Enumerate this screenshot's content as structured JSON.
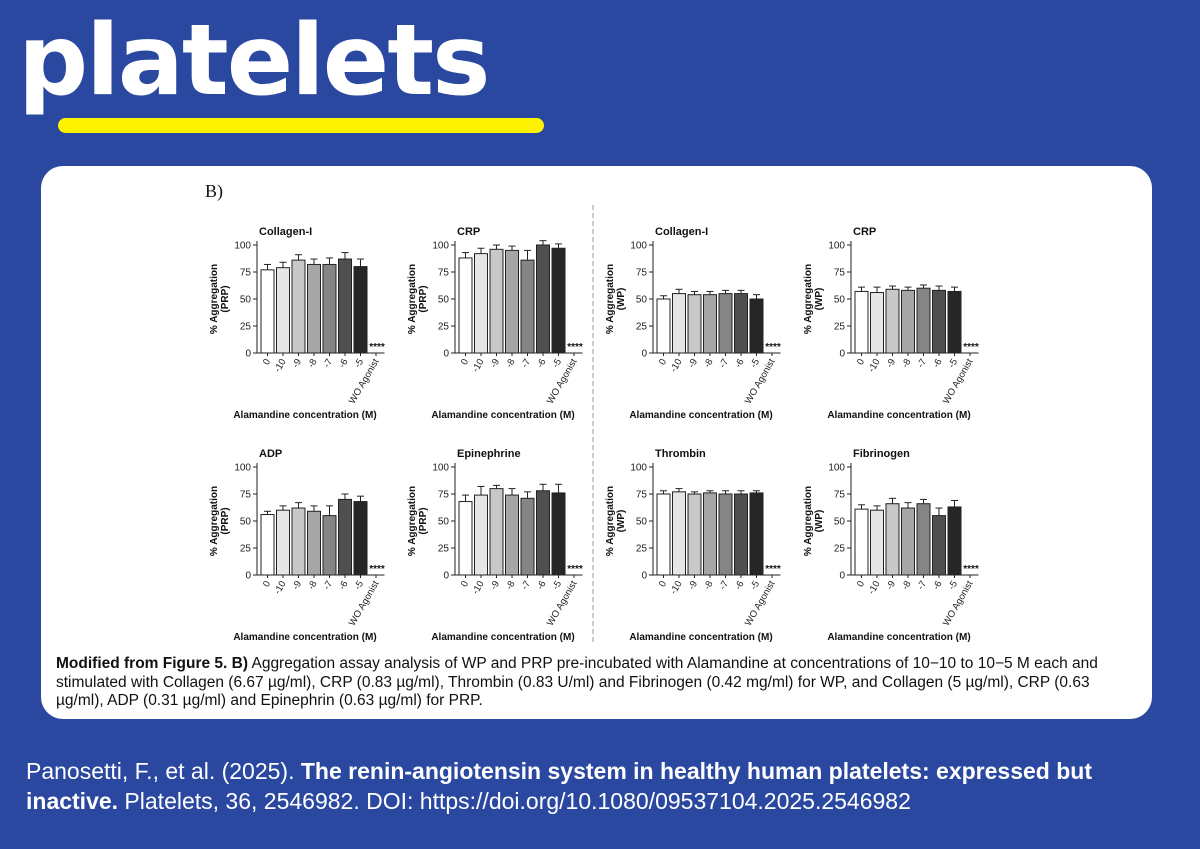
{
  "brand": {
    "logo_text": "platelets",
    "underline_color": "#fff200",
    "background_color": "#2a48a0"
  },
  "figure": {
    "panel_label": "B)"
  },
  "chart_data": [
    {
      "type": "bar",
      "title": "Collagen-I",
      "ylabel": "% Aggregation (PRP)",
      "xlabel": "Alamandine concentration (M)",
      "categories": [
        "0",
        "-10",
        "-9",
        "-8",
        "-7",
        "-6",
        "-5",
        "WO Agonist"
      ],
      "values": [
        77,
        79,
        86,
        82,
        82,
        87,
        80,
        0
      ],
      "errors": [
        5,
        5,
        5,
        5,
        6,
        6,
        7,
        0
      ],
      "ylim": [
        0,
        100
      ],
      "yticks": [
        0,
        25,
        50,
        75,
        100
      ],
      "annotation": "****"
    },
    {
      "type": "bar",
      "title": "CRP",
      "ylabel": "% Aggregation (PRP)",
      "xlabel": "Alamandine concentration (M)",
      "categories": [
        "0",
        "-10",
        "-9",
        "-8",
        "-7",
        "-6",
        "-5",
        "WO Agonist"
      ],
      "values": [
        88,
        92,
        96,
        95,
        86,
        100,
        97,
        0
      ],
      "errors": [
        5,
        5,
        4,
        4,
        9,
        4,
        4,
        0
      ],
      "ylim": [
        0,
        100
      ],
      "yticks": [
        0,
        25,
        50,
        75,
        100
      ],
      "annotation": "****"
    },
    {
      "type": "bar",
      "title": "Collagen-I",
      "ylabel": "% Aggregation (WP)",
      "xlabel": "Alamandine concentration (M)",
      "categories": [
        "0",
        "-10",
        "-9",
        "-8",
        "-7",
        "-6",
        "-5",
        "WO Agonist"
      ],
      "values": [
        50,
        55,
        54,
        54,
        55,
        55,
        50,
        0
      ],
      "errors": [
        3,
        4,
        3,
        3,
        3,
        3,
        4,
        0
      ],
      "ylim": [
        0,
        100
      ],
      "yticks": [
        0,
        25,
        50,
        75,
        100
      ],
      "annotation": "****"
    },
    {
      "type": "bar",
      "title": "CRP",
      "ylabel": "% Aggregation (WP)",
      "xlabel": "Alamandine concentration (M)",
      "categories": [
        "0",
        "-10",
        "-9",
        "-8",
        "-7",
        "-6",
        "-5",
        "WO Agonist"
      ],
      "values": [
        57,
        56,
        59,
        58,
        60,
        58,
        57,
        0
      ],
      "errors": [
        4,
        5,
        3,
        3,
        3,
        4,
        4,
        0
      ],
      "ylim": [
        0,
        100
      ],
      "yticks": [
        0,
        25,
        50,
        75,
        100
      ],
      "annotation": "****"
    },
    {
      "type": "bar",
      "title": "ADP",
      "ylabel": "% Aggregation (PRP)",
      "xlabel": "Alamandine concentration (M)",
      "categories": [
        "0",
        "-10",
        "-9",
        "-8",
        "-7",
        "-6",
        "-5",
        "WO Agonist"
      ],
      "values": [
        56,
        60,
        62,
        59,
        55,
        70,
        68,
        0
      ],
      "errors": [
        3,
        4,
        5,
        5,
        9,
        5,
        5,
        0
      ],
      "ylim": [
        0,
        100
      ],
      "yticks": [
        0,
        25,
        50,
        75,
        100
      ],
      "annotation": "****"
    },
    {
      "type": "bar",
      "title": "Epinephrine",
      "ylabel": "% Aggregation (PRP)",
      "xlabel": "Alamandine concentration (M)",
      "categories": [
        "0",
        "-10",
        "-9",
        "-8",
        "-7",
        "-6",
        "-5",
        "WO Agonist"
      ],
      "values": [
        68,
        74,
        80,
        74,
        71,
        78,
        76,
        0
      ],
      "errors": [
        6,
        8,
        3,
        6,
        6,
        6,
        8,
        0
      ],
      "ylim": [
        0,
        100
      ],
      "yticks": [
        0,
        25,
        50,
        75,
        100
      ],
      "annotation": "****"
    },
    {
      "type": "bar",
      "title": "Thrombin",
      "ylabel": "% Aggregation (WP)",
      "xlabel": "Alamandine concentration (M)",
      "categories": [
        "0",
        "-10",
        "-9",
        "-8",
        "-7",
        "-6",
        "-5",
        "WO Agonist"
      ],
      "values": [
        75,
        77,
        75,
        76,
        75,
        75,
        76,
        0
      ],
      "errors": [
        3,
        3,
        2,
        2,
        3,
        3,
        2,
        0
      ],
      "ylim": [
        0,
        100
      ],
      "yticks": [
        0,
        25,
        50,
        75,
        100
      ],
      "annotation": "****"
    },
    {
      "type": "bar",
      "title": "Fibrinogen",
      "ylabel": "% Aggregation (WP)",
      "xlabel": "Alamandine concentration (M)",
      "categories": [
        "0",
        "-10",
        "-9",
        "-8",
        "-7",
        "-6",
        "-5",
        "WO Agonist"
      ],
      "values": [
        61,
        60,
        66,
        62,
        66,
        55,
        63,
        0
      ],
      "errors": [
        4,
        4,
        5,
        5,
        4,
        7,
        6,
        0
      ],
      "ylim": [
        0,
        100
      ],
      "yticks": [
        0,
        25,
        50,
        75,
        100
      ],
      "annotation": "****"
    }
  ],
  "bar_colors": [
    "#ffffff",
    "#e6e6e6",
    "#c8c8c8",
    "#a6a6a6",
    "#858585",
    "#4f4f4f",
    "#262626"
  ],
  "caption": {
    "bold_prefix": "Modified from Figure 5. B)",
    "text": " Aggregation assay analysis of WP and PRP pre-incubated with Alamandine at concentrations of 10−10 to 10−5 M each and stimulated with Collagen (6.67 µg/ml), CRP (0.83 µg/ml), Thrombin (0.83 U/ml) and Fibrinogen (0.42 mg/ml) for WP, and Collagen (5 µg/ml), CRP (0.63 µg/ml), ADP (0.31 µg/ml) and Epinephrin (0.63 µg/ml) for PRP."
  },
  "citation": {
    "authors": "Panosetti, F., et al. (2025). ",
    "title": "The renin-angiotensin system in healthy human platelets: expressed but inactive.",
    "journal": " Platelets, 36, 2546982. DOI: https://doi.org/10.1080/09537104.2025.2546982"
  }
}
